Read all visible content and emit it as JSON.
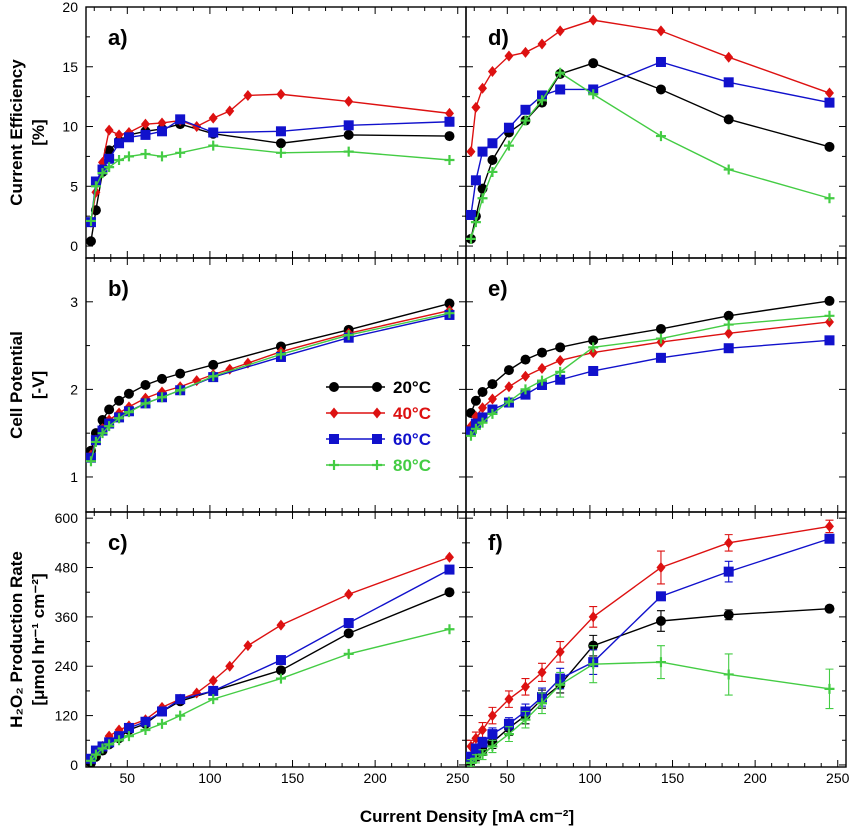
{
  "figure": {
    "xlabel": "Current Density [mA cm⁻²]",
    "ylabels": [
      {
        "line1": "Current Efficiency",
        "line2": "[%]"
      },
      {
        "line1": "Cell Potential",
        "line2": "[-V]"
      },
      {
        "line1": "H₂O₂ Production Rate",
        "line2": "[μmol hr⁻¹ cm⁻²]"
      }
    ],
    "series_styles": [
      {
        "name": "20°C",
        "color": "#000000",
        "marker": "circle"
      },
      {
        "name": "40°C",
        "color": "#dd1111",
        "marker": "diamond"
      },
      {
        "name": "60°C",
        "color": "#1111cc",
        "marker": "square"
      },
      {
        "name": "80°C",
        "color": "#44cc44",
        "marker": "plus"
      }
    ],
    "legend_panel": "b"
  },
  "chart_data": [
    {
      "type": "line",
      "panel": "a",
      "label": "a)",
      "xlim": [
        25,
        255
      ],
      "xticks": [
        50,
        100,
        150,
        200,
        250
      ],
      "ylim": [
        -1,
        20
      ],
      "yticks": [
        0,
        5,
        10,
        15,
        20
      ],
      "series": [
        {
          "name": "20°C",
          "x": [
            28,
            31,
            35,
            39,
            45,
            51,
            61,
            71,
            82,
            102,
            143,
            184,
            245
          ],
          "y": [
            0.4,
            3.0,
            6.2,
            8.0,
            8.8,
            9.3,
            9.6,
            9.8,
            10.2,
            9.4,
            8.6,
            9.3,
            9.2
          ]
        },
        {
          "name": "40°C",
          "x": [
            28,
            31,
            35,
            39,
            45,
            51,
            61,
            71,
            82,
            92,
            102,
            112,
            123,
            143,
            184,
            245
          ],
          "y": [
            2.0,
            4.5,
            7.0,
            9.7,
            9.3,
            9.5,
            10.2,
            10.3,
            10.5,
            10.0,
            10.7,
            11.3,
            12.6,
            12.7,
            12.1,
            11.1
          ]
        },
        {
          "name": "60°C",
          "x": [
            28,
            31,
            35,
            39,
            45,
            51,
            61,
            71,
            82,
            102,
            143,
            184,
            245
          ],
          "y": [
            2.0,
            5.4,
            6.4,
            7.3,
            8.6,
            9.1,
            9.3,
            9.6,
            10.6,
            9.5,
            9.6,
            10.1,
            10.4
          ]
        },
        {
          "name": "80°C",
          "x": [
            28,
            31,
            35,
            39,
            45,
            51,
            61,
            71,
            82,
            102,
            143,
            184,
            245
          ],
          "y": [
            2.1,
            5.0,
            6.1,
            6.6,
            7.2,
            7.5,
            7.7,
            7.5,
            7.8,
            8.4,
            7.8,
            7.9,
            7.2
          ]
        }
      ]
    },
    {
      "type": "line",
      "panel": "b",
      "label": "b)",
      "xlim": [
        25,
        255
      ],
      "xticks": [
        50,
        100,
        150,
        200,
        250
      ],
      "ylim": [
        0.6,
        3.5
      ],
      "yticks": [
        1,
        2,
        3
      ],
      "series": [
        {
          "name": "20°C",
          "x": [
            28,
            31,
            35,
            39,
            45,
            51,
            61,
            71,
            82,
            102,
            143,
            184,
            245
          ],
          "y": [
            1.3,
            1.5,
            1.65,
            1.77,
            1.87,
            1.95,
            2.05,
            2.12,
            2.18,
            2.28,
            2.49,
            2.68,
            2.98
          ]
        },
        {
          "name": "40°C",
          "x": [
            28,
            31,
            35,
            39,
            45,
            51,
            61,
            71,
            82,
            92,
            102,
            112,
            123,
            143,
            184,
            245
          ],
          "y": [
            1.25,
            1.42,
            1.55,
            1.65,
            1.73,
            1.8,
            1.9,
            1.97,
            2.03,
            2.1,
            2.17,
            2.23,
            2.3,
            2.43,
            2.64,
            2.9
          ]
        },
        {
          "name": "60°C",
          "x": [
            28,
            31,
            35,
            39,
            45,
            51,
            61,
            71,
            82,
            102,
            143,
            184,
            245
          ],
          "y": [
            1.22,
            1.42,
            1.53,
            1.61,
            1.68,
            1.75,
            1.84,
            1.91,
            1.99,
            2.14,
            2.37,
            2.59,
            2.85
          ]
        },
        {
          "name": "80°C",
          "x": [
            28,
            31,
            35,
            39,
            45,
            51,
            61,
            71,
            82,
            102,
            143,
            184,
            245
          ],
          "y": [
            1.18,
            1.4,
            1.5,
            1.58,
            1.67,
            1.74,
            1.84,
            1.91,
            1.99,
            2.15,
            2.4,
            2.62,
            2.87
          ]
        }
      ]
    },
    {
      "type": "line",
      "panel": "c",
      "label": "c)",
      "xlim": [
        25,
        255
      ],
      "xticks": [
        50,
        100,
        150,
        200,
        250
      ],
      "ylim": [
        -5,
        615
      ],
      "yticks": [
        0,
        120,
        240,
        360,
        480,
        600
      ],
      "series": [
        {
          "name": "20°C",
          "x": [
            28,
            31,
            35,
            39,
            45,
            51,
            61,
            71,
            82,
            102,
            143,
            184,
            245
          ],
          "y": [
            5,
            20,
            35,
            50,
            65,
            85,
            100,
            130,
            155,
            180,
            230,
            320,
            420
          ]
        },
        {
          "name": "40°C",
          "x": [
            28,
            31,
            35,
            39,
            45,
            51,
            61,
            71,
            82,
            92,
            102,
            112,
            123,
            143,
            184,
            245
          ],
          "y": [
            15,
            30,
            45,
            70,
            85,
            95,
            110,
            140,
            160,
            175,
            205,
            240,
            290,
            340,
            415,
            505
          ]
        },
        {
          "name": "60°C",
          "x": [
            28,
            31,
            35,
            39,
            45,
            51,
            61,
            71,
            82,
            102,
            143,
            184,
            245
          ],
          "y": [
            15,
            35,
            45,
            55,
            70,
            90,
            105,
            130,
            160,
            180,
            255,
            345,
            475
          ]
        },
        {
          "name": "80°C",
          "x": [
            28,
            31,
            35,
            39,
            45,
            51,
            61,
            71,
            82,
            102,
            143,
            184,
            245
          ],
          "y": [
            10,
            25,
            40,
            50,
            60,
            70,
            85,
            100,
            120,
            160,
            210,
            270,
            330
          ]
        }
      ]
    },
    {
      "type": "line",
      "panel": "d",
      "label": "d)",
      "xlim": [
        25,
        255
      ],
      "xticks": [
        50,
        100,
        150,
        200,
        250
      ],
      "ylim": [
        -1,
        20
      ],
      "yticks": [
        0,
        5,
        10,
        15,
        20
      ],
      "series": [
        {
          "name": "20°C",
          "x": [
            28,
            31,
            35,
            41,
            51,
            61,
            71,
            82,
            102,
            143,
            184,
            245
          ],
          "y": [
            0.6,
            2.5,
            4.8,
            7.2,
            9.5,
            10.5,
            12.0,
            14.4,
            15.3,
            13.1,
            10.6,
            8.3
          ]
        },
        {
          "name": "40°C",
          "x": [
            28,
            31,
            35,
            41,
            51,
            61,
            71,
            82,
            102,
            143,
            184,
            245
          ],
          "y": [
            7.9,
            11.6,
            13.2,
            14.6,
            15.9,
            16.2,
            16.9,
            18.0,
            18.9,
            18.0,
            15.8,
            12.8
          ]
        },
        {
          "name": "60°C",
          "x": [
            28,
            31,
            35,
            41,
            51,
            61,
            71,
            82,
            102,
            143,
            184,
            245
          ],
          "y": [
            2.6,
            5.5,
            7.9,
            8.6,
            9.9,
            11.4,
            12.6,
            13.1,
            13.1,
            15.4,
            13.7,
            12.0
          ]
        },
        {
          "name": "80°C",
          "x": [
            28,
            31,
            35,
            41,
            51,
            61,
            71,
            82,
            102,
            143,
            184,
            245
          ],
          "y": [
            0.6,
            2.0,
            4.0,
            6.2,
            8.4,
            10.5,
            12.2,
            14.5,
            12.7,
            9.2,
            6.4,
            4.0
          ]
        }
      ]
    },
    {
      "type": "line",
      "panel": "e",
      "label": "e)",
      "xlim": [
        25,
        255
      ],
      "xticks": [
        50,
        100,
        150,
        200,
        250
      ],
      "ylim": [
        0.6,
        3.5
      ],
      "yticks": [
        1,
        2,
        3
      ],
      "series": [
        {
          "name": "20°C",
          "x": [
            28,
            31,
            35,
            41,
            51,
            61,
            71,
            82,
            102,
            143,
            184,
            245
          ],
          "y": [
            1.73,
            1.87,
            1.97,
            2.06,
            2.22,
            2.34,
            2.42,
            2.48,
            2.56,
            2.69,
            2.84,
            3.01
          ]
        },
        {
          "name": "40°C",
          "x": [
            28,
            31,
            35,
            41,
            51,
            61,
            71,
            82,
            102,
            143,
            184,
            245
          ],
          "y": [
            1.58,
            1.69,
            1.79,
            1.89,
            2.03,
            2.15,
            2.24,
            2.33,
            2.42,
            2.54,
            2.64,
            2.77
          ]
        },
        {
          "name": "60°C",
          "x": [
            28,
            31,
            35,
            41,
            51,
            61,
            71,
            82,
            102,
            143,
            184,
            245
          ],
          "y": [
            1.52,
            1.61,
            1.68,
            1.77,
            1.85,
            1.94,
            2.05,
            2.11,
            2.21,
            2.36,
            2.47,
            2.56
          ]
        },
        {
          "name": "80°C",
          "x": [
            28,
            31,
            35,
            41,
            51,
            61,
            71,
            82,
            102,
            143,
            184,
            245
          ],
          "y": [
            1.47,
            1.55,
            1.62,
            1.72,
            1.86,
            2.0,
            2.1,
            2.2,
            2.48,
            2.58,
            2.74,
            2.84
          ]
        }
      ]
    },
    {
      "type": "line",
      "panel": "f",
      "label": "f)",
      "xlim": [
        25,
        255
      ],
      "xticks": [
        50,
        100,
        150,
        200,
        250
      ],
      "ylim": [
        -5,
        615
      ],
      "yticks": [
        0,
        120,
        240,
        360,
        480,
        600
      ],
      "series": [
        {
          "name": "20°C",
          "x": [
            28,
            31,
            35,
            41,
            51,
            61,
            71,
            82,
            102,
            143,
            184,
            245
          ],
          "y": [
            10,
            20,
            35,
            55,
            90,
            120,
            160,
            195,
            290,
            350,
            365,
            380
          ],
          "err": [
            8,
            10,
            12,
            15,
            18,
            20,
            22,
            20,
            25,
            25,
            12,
            6
          ]
        },
        {
          "name": "40°C",
          "x": [
            28,
            31,
            35,
            41,
            51,
            61,
            71,
            82,
            102,
            143,
            184,
            245
          ],
          "y": [
            45,
            65,
            85,
            120,
            160,
            190,
            225,
            275,
            360,
            480,
            540,
            580
          ],
          "err": [
            15,
            15,
            18,
            20,
            20,
            20,
            22,
            25,
            25,
            40,
            20,
            15
          ]
        },
        {
          "name": "60°C",
          "x": [
            28,
            31,
            35,
            41,
            51,
            61,
            71,
            82,
            102,
            143,
            184,
            245
          ],
          "y": [
            20,
            40,
            55,
            75,
            100,
            130,
            165,
            210,
            250,
            410,
            470,
            550
          ],
          "err": [
            8,
            10,
            12,
            15,
            15,
            18,
            22,
            25,
            30,
            10,
            25,
            8
          ]
        },
        {
          "name": "80°C",
          "x": [
            28,
            31,
            35,
            41,
            51,
            61,
            71,
            82,
            102,
            143,
            184,
            245
          ],
          "y": [
            5,
            15,
            25,
            45,
            75,
            110,
            150,
            195,
            245,
            250,
            220,
            185
          ],
          "err": [
            8,
            10,
            12,
            15,
            18,
            20,
            25,
            30,
            45,
            40,
            50,
            48
          ]
        }
      ]
    }
  ]
}
